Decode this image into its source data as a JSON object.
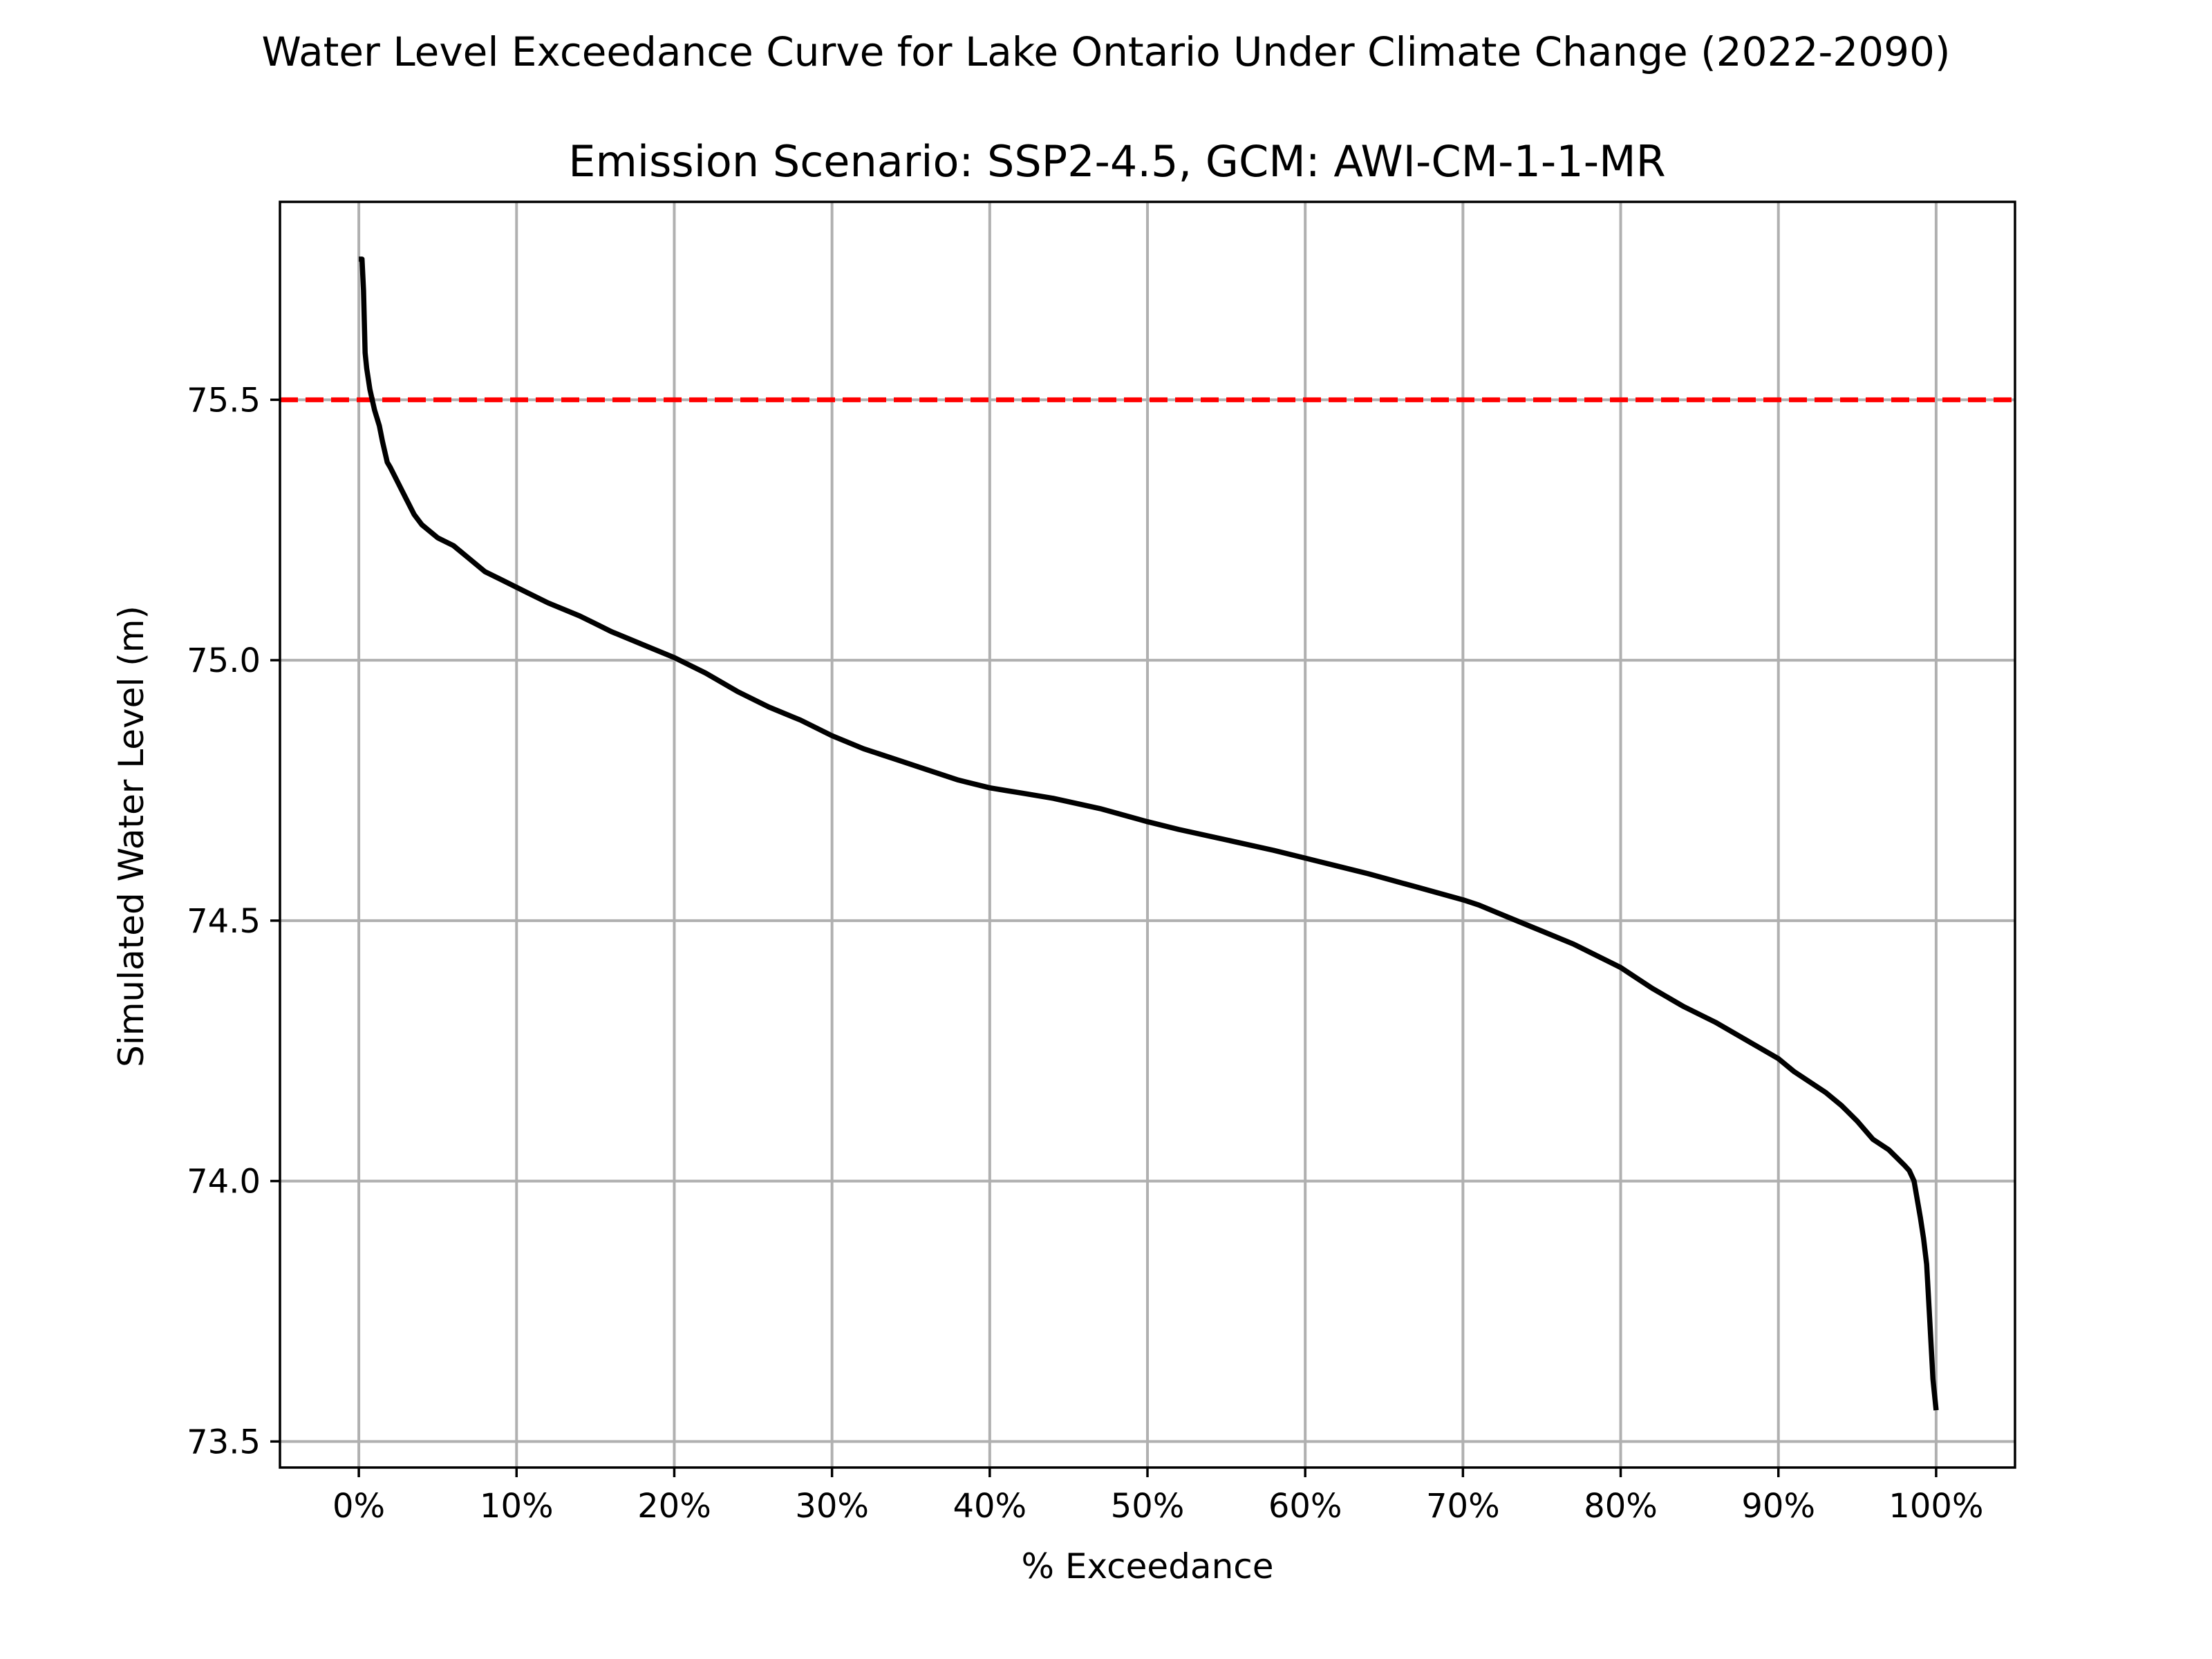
{
  "figure": {
    "suptitle": "Water Level Exceedance Curve for Lake Ontario Under Climate Change (2022-2090)"
  },
  "chart_data": {
    "type": "line",
    "title": "Emission Scenario: SSP2-4.5, GCM: AWI-CM-1-1-MR",
    "xlabel": "% Exceedance",
    "ylabel": "Simulated Water Level (m)",
    "xlim": [
      -5,
      105
    ],
    "ylim": [
      73.45,
      75.88
    ],
    "grid": true,
    "x_ticks": [
      0,
      10,
      20,
      30,
      40,
      50,
      60,
      70,
      80,
      90,
      100
    ],
    "x_tick_labels": [
      "0%",
      "10%",
      "20%",
      "30%",
      "40%",
      "50%",
      "60%",
      "70%",
      "80%",
      "90%",
      "100%"
    ],
    "y_ticks": [
      73.5,
      74.0,
      74.5,
      75.0,
      75.5
    ],
    "y_tick_labels": [
      "73.5",
      "74.0",
      "74.5",
      "75.0",
      "75.5"
    ],
    "colors": {
      "curve": "#000000",
      "threshold": "#ff0000",
      "grid": "#b0b0b0"
    },
    "reference_lines": [
      {
        "orientation": "horizontal",
        "y": 75.5,
        "style": "dashed",
        "color": "#ff0000"
      }
    ],
    "series": [
      {
        "style": "solid",
        "color": "#000000",
        "x": [
          0,
          0.2,
          0.3,
          0.4,
          0.5,
          0.7,
          1.0,
          1.3,
          1.5,
          1.8,
          2.0,
          2.5,
          3.0,
          3.5,
          4.0,
          5.0,
          6.0,
          7.0,
          8.0,
          9.0,
          10.0,
          12.0,
          14.0,
          15.0,
          16.0,
          18.0,
          20.0,
          22.0,
          24.0,
          26.0,
          28.0,
          30.0,
          32.0,
          34.0,
          36.0,
          38.0,
          40.0,
          41.0,
          42.0,
          44.0,
          47.0,
          50.0,
          52.0,
          55.0,
          58.0,
          60.0,
          62.0,
          64.0,
          67.0,
          70.0,
          71.0,
          73.0,
          75.0,
          77.0,
          78.0,
          80.0,
          81.0,
          82.0,
          84.0,
          86.0,
          88.0,
          90.0,
          91.0,
          93.0,
          94.0,
          95.0,
          96.0,
          97.0,
          97.5,
          98.0,
          98.3,
          98.6,
          99.0,
          99.2,
          99.4,
          99.6,
          99.8,
          100.0
        ],
        "y": [
          75.77,
          75.77,
          75.71,
          75.59,
          75.56,
          75.52,
          75.48,
          75.45,
          75.42,
          75.38,
          75.37,
          75.34,
          75.31,
          75.28,
          75.26,
          75.235,
          75.22,
          75.195,
          75.17,
          75.155,
          75.14,
          75.11,
          75.085,
          75.07,
          75.055,
          75.03,
          75.005,
          74.975,
          74.94,
          74.91,
          74.885,
          74.855,
          74.83,
          74.81,
          74.79,
          74.77,
          74.755,
          74.75,
          74.745,
          74.735,
          74.715,
          74.69,
          74.675,
          74.655,
          74.635,
          74.62,
          74.605,
          74.59,
          74.565,
          74.54,
          74.53,
          74.505,
          74.48,
          74.455,
          74.44,
          74.41,
          74.39,
          74.37,
          74.335,
          74.305,
          74.27,
          74.235,
          74.21,
          74.17,
          74.145,
          74.115,
          74.08,
          74.06,
          74.045,
          74.03,
          74.02,
          74.0,
          73.93,
          73.89,
          73.84,
          73.73,
          73.62,
          73.56
        ]
      }
    ]
  }
}
